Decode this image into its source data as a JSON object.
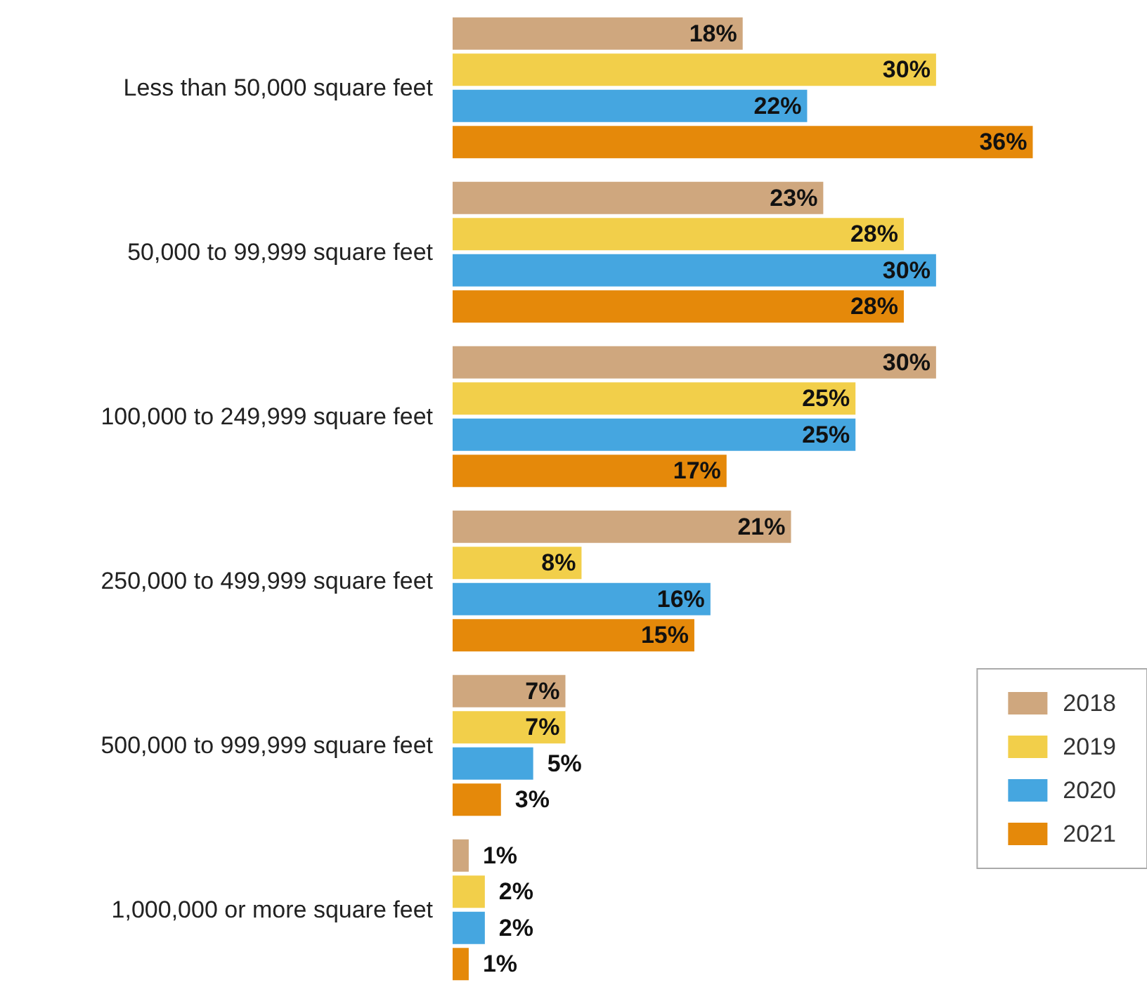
{
  "chart_data": {
    "type": "bar",
    "orientation": "horizontal",
    "legend": "bottom right",
    "categories": [
      "Less than 50,000 square feet",
      "50,000 to 99,999 square feet",
      "100,000 to 249,999 square feet",
      "250,000 to 499,999 square feet",
      "500,000 to 999,999 square feet",
      "1,000,000 or more square feet"
    ],
    "series": [
      {
        "name": "2018",
        "color": "#cfa77e",
        "values": [
          18,
          23,
          30,
          21,
          7,
          1
        ],
        "value_labels": [
          "18%",
          "23%",
          "30%",
          "21%",
          "7%",
          "1%"
        ]
      },
      {
        "name": "2019",
        "color": "#f2cf4a",
        "values": [
          30,
          28,
          25,
          8,
          7,
          2
        ],
        "value_labels": [
          "30%",
          "28%",
          "25%",
          "8%",
          "7%",
          "2%"
        ]
      },
      {
        "name": "2020",
        "color": "#45a6e0",
        "values": [
          22,
          30,
          25,
          16,
          5,
          2
        ],
        "value_labels": [
          "22%",
          "30%",
          "25%",
          "16%",
          "5%",
          "2%"
        ]
      },
      {
        "name": "2021",
        "color": "#e5890a",
        "values": [
          36,
          28,
          17,
          15,
          3,
          1
        ],
        "value_labels": [
          "36%",
          "28%",
          "17%",
          "15%",
          "3%",
          "1%"
        ]
      }
    ]
  }
}
